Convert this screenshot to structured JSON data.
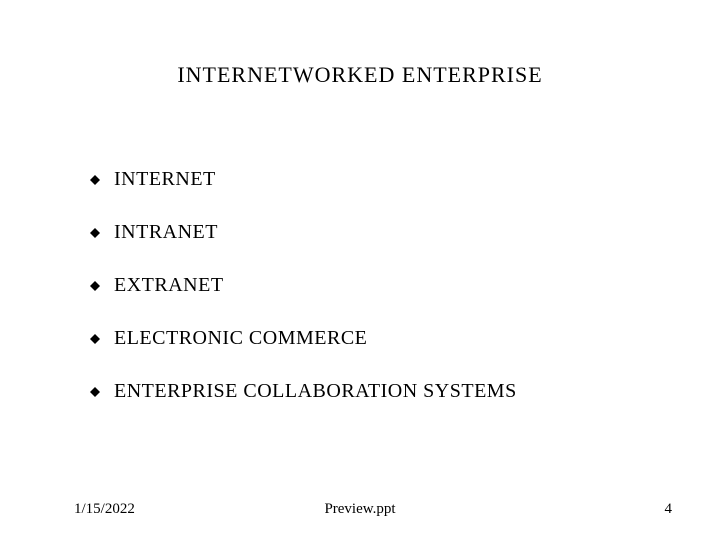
{
  "title": {
    "text": "INTERNETWORKED   ENTERPRISE",
    "fontsize": 22,
    "color": "#000000"
  },
  "bullets": {
    "items": [
      {
        "text": "INTERNET"
      },
      {
        "text": "INTRANET"
      },
      {
        "text": "EXTRANET"
      },
      {
        "text": "ELECTRONIC COMMERCE"
      },
      {
        "text": "ENTERPRISE COLLABORATION SYSTEMS"
      }
    ],
    "fontsize": 20,
    "color": "#000000",
    "bullet_icon": {
      "type": "diamond",
      "size": 10,
      "fill": "#000000"
    }
  },
  "footer": {
    "date": "1/15/2022",
    "file": "Preview.ppt",
    "page": "4",
    "fontsize": 15,
    "color": "#000000"
  },
  "background_color": "#ffffff"
}
